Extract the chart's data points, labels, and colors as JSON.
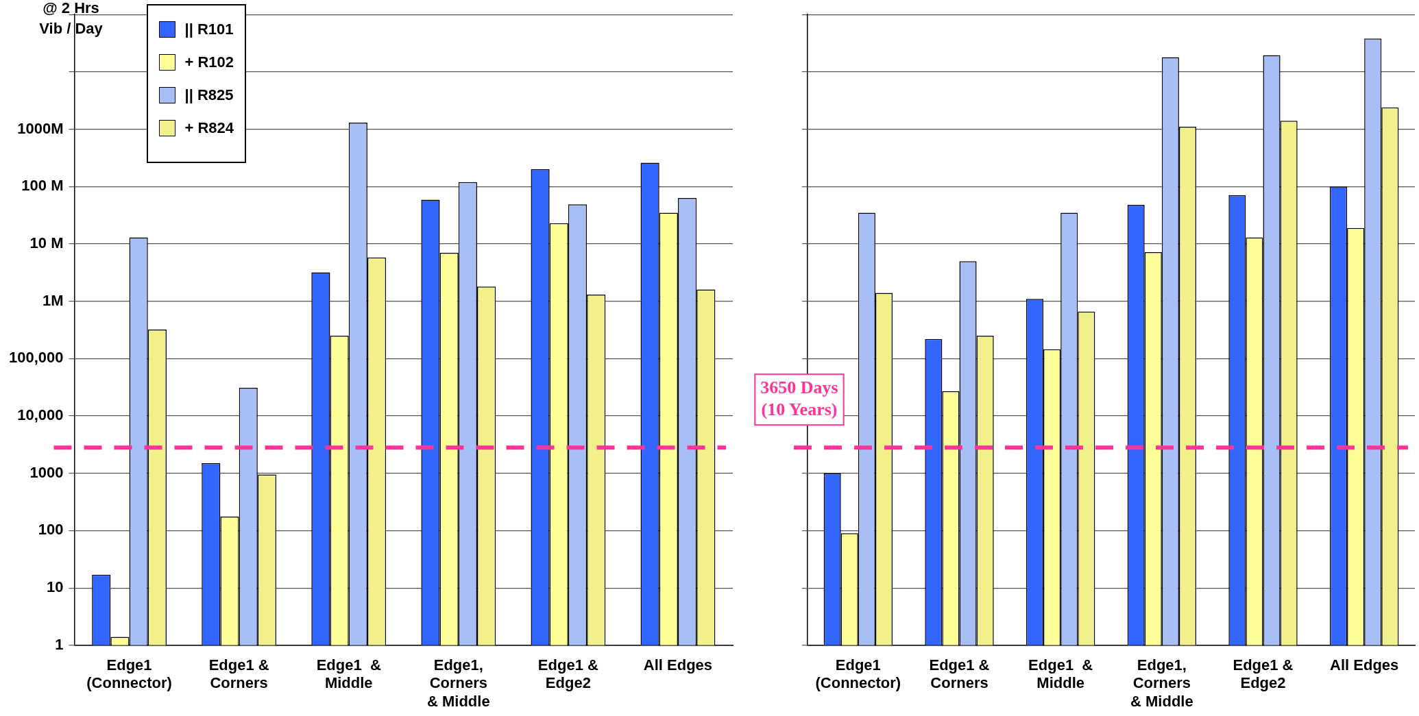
{
  "chart_data": [
    {
      "type": "bar",
      "ylabel": "@ 2 Hrs\nVib / Day",
      "categories": [
        "Edge1\n(Connector)",
        "Edge1 &\nCorners",
        "Edge1  &\nMiddle",
        "Edge1,\nCorners\n& Middle",
        "Edge1 &\nEdge2",
        "All Edges"
      ],
      "series": [
        {
          "name": "||  R101",
          "color": "#3366ff",
          "values": [
            17,
            1500,
            3200000,
            59000000,
            200000000,
            260000000
          ]
        },
        {
          "name": "+  R102",
          "color": "#ffff99",
          "values": [
            1.4,
            175,
            250000,
            7000000,
            23000000,
            35000000
          ]
        },
        {
          "name": "||  R825",
          "color": "#a8bff5",
          "values": [
            13000000,
            31000,
            1300000000,
            120000000,
            49000000,
            63000000
          ]
        },
        {
          "name": "+  R824",
          "color": "#f2f08a",
          "values": [
            320000,
            950,
            5800000,
            1800000,
            1300000,
            1600000
          ]
        }
      ],
      "log": true,
      "ylim": [
        1,
        100000000000
      ],
      "yticks": [
        1,
        10,
        100,
        1000,
        {
          "value": 10000,
          "label": "10,000"
        },
        {
          "value": 100000,
          "label": "100,000"
        },
        {
          "value": 1000000,
          "label": "1M"
        },
        {
          "value": 10000000,
          "label": "10 M"
        },
        {
          "value": 100000000,
          "label": "100 M"
        },
        {
          "value": 1000000000,
          "label": "1000M"
        },
        {
          "value": 10000000000,
          "label": null
        },
        {
          "value": 100000000000,
          "label": null
        }
      ],
      "grid": "y",
      "legend": "top left",
      "ref_lines": [
        {
          "axis": "y",
          "value": 2800,
          "color": "#ff3399",
          "line_style": "dashed"
        }
      ]
    },
    {
      "type": "bar",
      "categories": [
        "Edge1\n(Connector)",
        "Edge1 &\nCorners",
        "Edge1  &\nMiddle",
        "Edge1,\nCorners\n& Middle",
        "Edge1 &\nEdge2",
        "All Edges"
      ],
      "series": [
        {
          "color": "#3366ff",
          "values": [
            1000,
            220000,
            1100000,
            48000000,
            71000000,
            100000000
          ]
        },
        {
          "color": "#ffff99",
          "values": [
            90,
            27000,
            145000,
            7200000,
            13000000,
            19000000
          ]
        },
        {
          "color": "#a8bff5",
          "values": [
            35000000,
            5000000,
            35000000,
            18000000000,
            19500000000,
            38000000000
          ]
        },
        {
          "color": "#f2f08a",
          "values": [
            1400000,
            250000,
            660000,
            1100000000,
            1400000000,
            2400000000
          ]
        }
      ],
      "log": true,
      "ylim": [
        1,
        100000000000
      ],
      "yticks": [
        1,
        10,
        100,
        1000,
        10000,
        100000,
        1000000,
        10000000,
        100000000,
        1000000000,
        10000000000,
        100000000000
      ],
      "grid": "y",
      "tick_labels": "x",
      "ref_lines": [
        {
          "axis": "y",
          "value": 2800,
          "color": "#ff3399",
          "line_style": "dashed",
          "label": "3650 Days\n(10 Years)"
        }
      ]
    }
  ]
}
